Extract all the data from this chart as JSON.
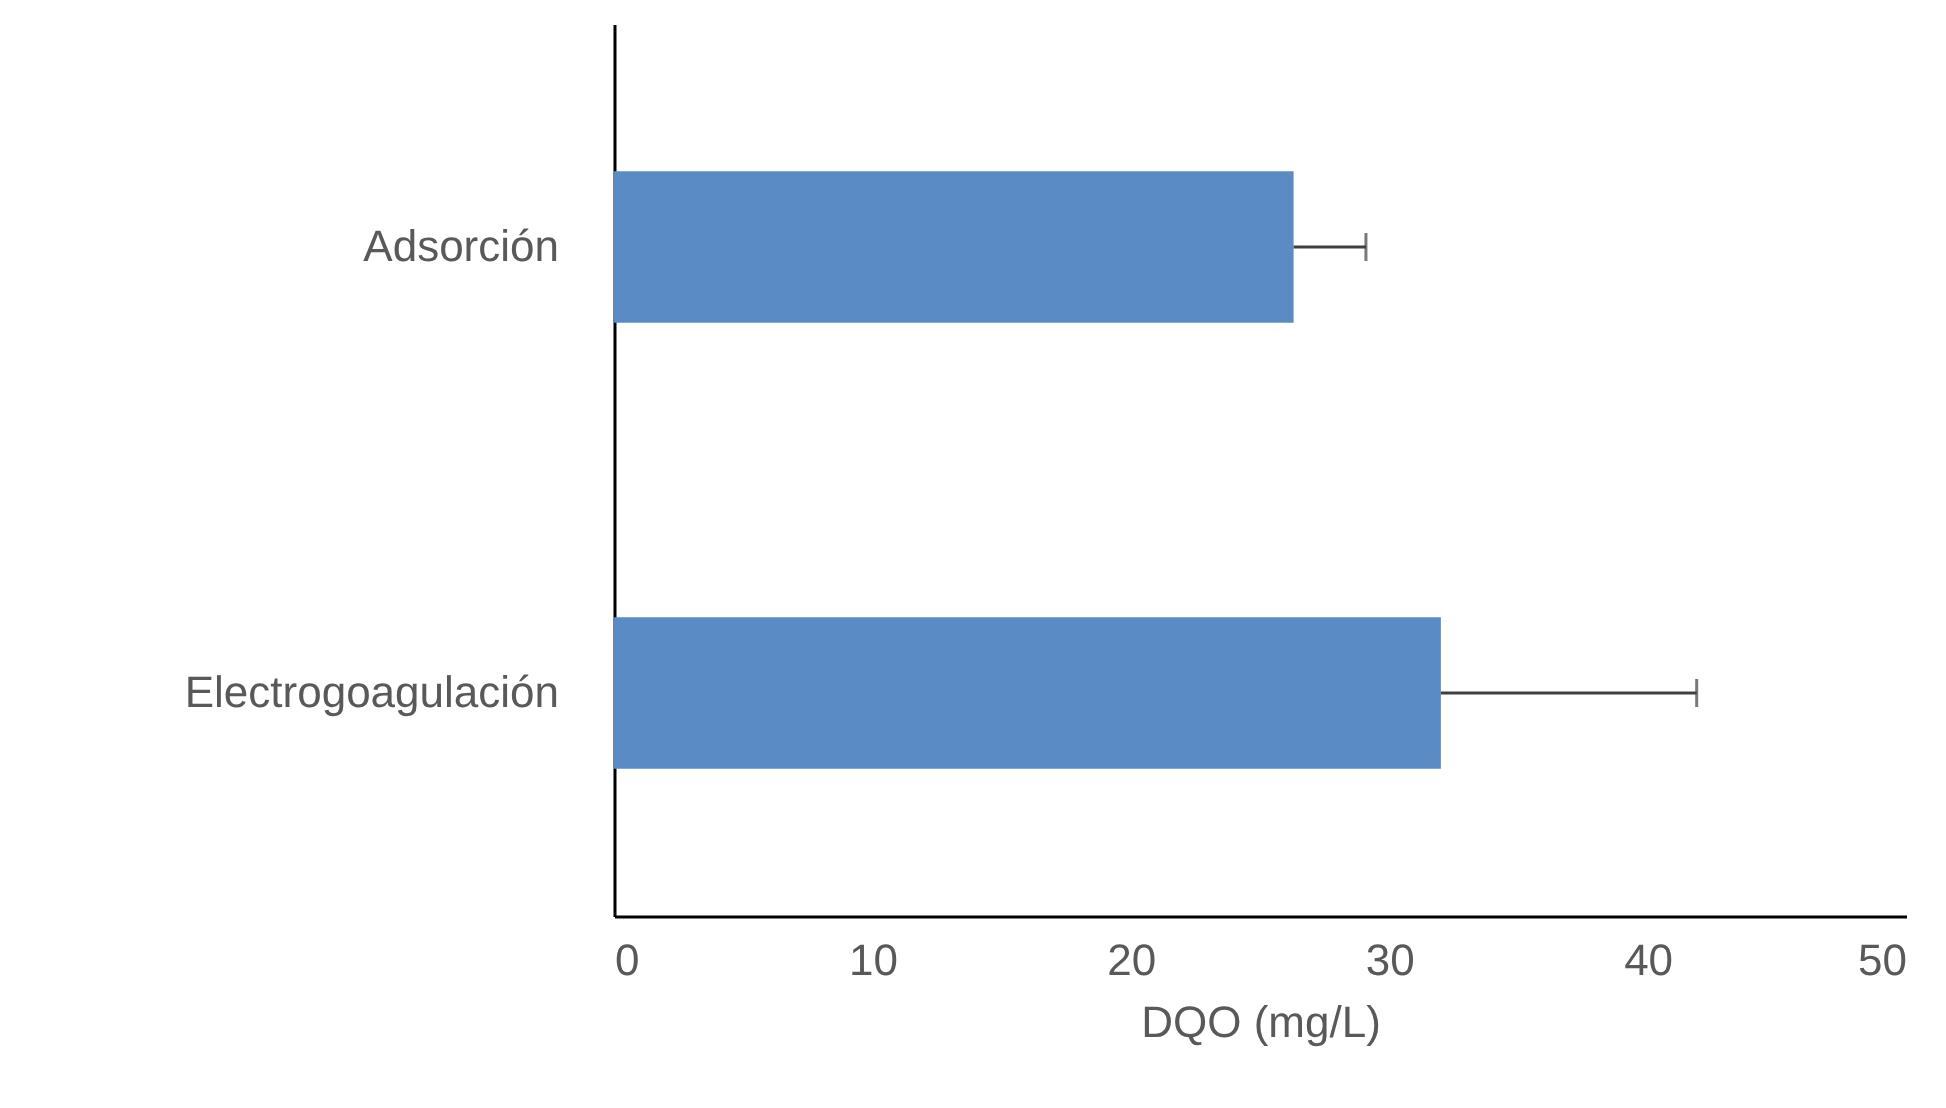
{
  "chart_data": {
    "type": "bar",
    "orientation": "horizontal",
    "categories": [
      "Adsorción",
      "Electrogoagulación"
    ],
    "values": [
      26.3,
      32.0
    ],
    "errors": [
      [
        26.3,
        29.1
      ],
      [
        32.0,
        41.9
      ]
    ],
    "color": "#5b8bc5",
    "xlabel": "DQO (mg/L)",
    "xlim": [
      0,
      50
    ],
    "xticks": [
      0,
      10,
      20,
      30,
      40,
      50
    ],
    "grid": false
  }
}
